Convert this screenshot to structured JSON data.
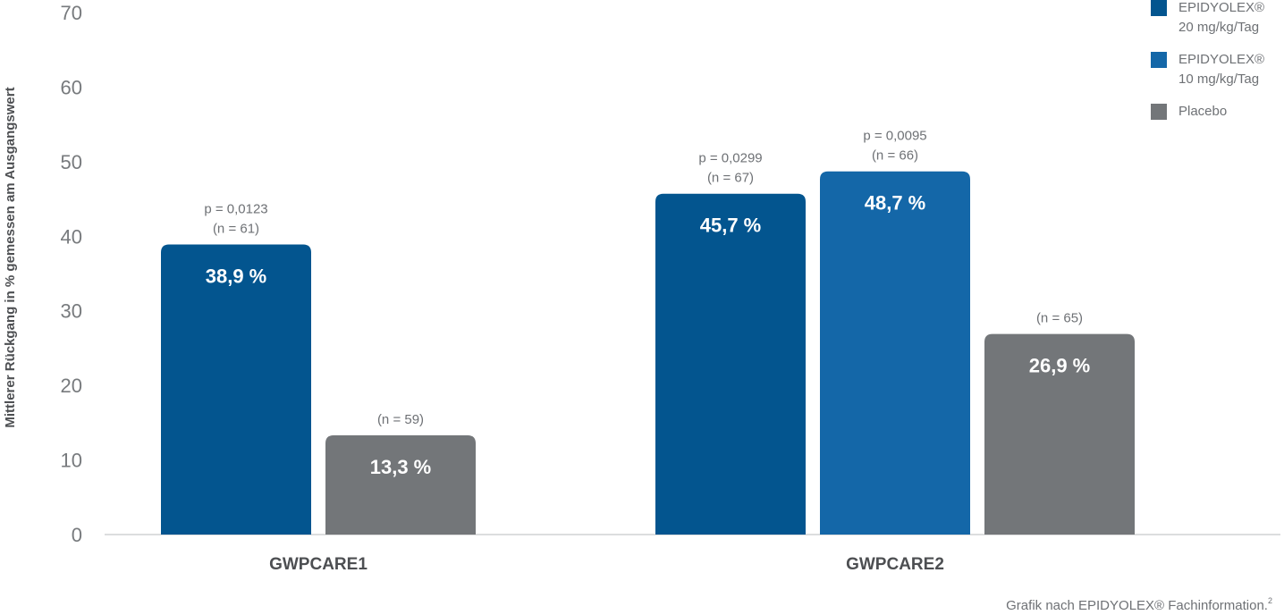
{
  "chart_data": {
    "type": "bar",
    "title": "",
    "xlabel": "",
    "ylabel": "Mittlerer Rückgang in % gemessen am Ausgangswert",
    "ylim": [
      0,
      70
    ],
    "yticks": [
      0,
      10,
      20,
      30,
      40,
      50,
      60,
      70
    ],
    "grid": false,
    "legend_position": "top-right",
    "categories": [
      "GWPCARE1",
      "GWPCARE2"
    ],
    "series": [
      {
        "name": "EPIDYOLEX® 20 mg/kg/Tag",
        "legend_lines": [
          "EPIDYOLEX®",
          "20 mg/kg/Tag"
        ],
        "color": "#03558f",
        "values": [
          38.9,
          45.7
        ],
        "value_labels": [
          "38,9 %",
          "45,7 %"
        ],
        "annotations": [
          [
            "p = 0,0123",
            "(n = 61)"
          ],
          [
            "p = 0,0299",
            "(n = 67)"
          ]
        ]
      },
      {
        "name": "EPIDYOLEX® 10 mg/kg/Tag",
        "legend_lines": [
          "EPIDYOLEX®",
          "10 mg/kg/Tag"
        ],
        "color": "#1467a8",
        "values": [
          null,
          48.7
        ],
        "value_labels": [
          null,
          "48,7 %"
        ],
        "annotations": [
          null,
          [
            "p = 0,0095",
            "(n = 66)"
          ]
        ]
      },
      {
        "name": "Placebo",
        "legend_lines": [
          "Placebo"
        ],
        "color": "#737679",
        "values": [
          13.3,
          26.9
        ],
        "value_labels": [
          "13,3 %",
          "26,9 %"
        ],
        "annotations": [
          [
            "(n = 59)"
          ],
          [
            "(n = 65)"
          ]
        ]
      }
    ]
  },
  "source_note": "Grafik nach EPIDYOLEX® Fachinformation.",
  "source_ref": "2"
}
